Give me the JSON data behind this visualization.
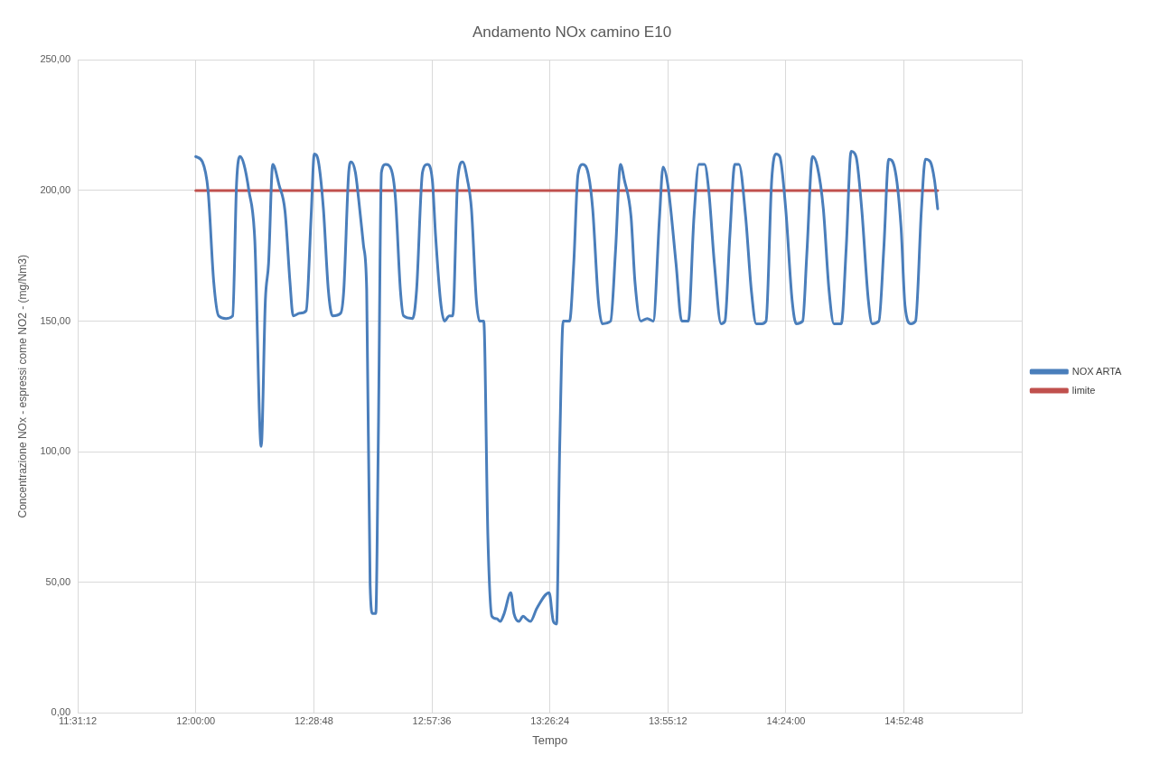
{
  "chart_data": {
    "type": "line",
    "title": "Andamento NOx camino E10",
    "xlabel": "Tempo",
    "ylabel": "Concentrazione NOx - espressi come NO2 - (mg/Nm3)",
    "xlim": [
      11.52,
      15.36
    ],
    "xticks": [
      {
        "value": 11.52,
        "label": "11:31:12"
      },
      {
        "value": 12,
        "label": "12:00:00"
      },
      {
        "value": 12.48,
        "label": "12:28:48"
      },
      {
        "value": 12.96,
        "label": "12:57:36"
      },
      {
        "value": 13.44,
        "label": "13:26:24"
      },
      {
        "value": 13.92,
        "label": "13:55:12"
      },
      {
        "value": 14.4,
        "label": "14:24:00"
      },
      {
        "value": 14.88,
        "label": "14:52:48"
      },
      {
        "value": 15.36,
        "label": null
      }
    ],
    "ylim": [
      0,
      250
    ],
    "yticks": [
      {
        "value": 0,
        "label": "0,00"
      },
      {
        "value": 50,
        "label": "50,00"
      },
      {
        "value": 100,
        "label": "100,00"
      },
      {
        "value": 150,
        "label": "150,00"
      },
      {
        "value": 200,
        "label": "200,00"
      },
      {
        "value": 250,
        "label": "250,00"
      }
    ],
    "grid": true,
    "legend": "right",
    "marker": "none",
    "line_style": "solid",
    "series": [
      {
        "name": "NOX ARTA",
        "color": "#4a7ebb",
        "x": [
          12.0,
          12.027,
          12.05,
          12.073,
          12.093,
          12.123,
          12.15,
          12.166,
          12.18,
          12.196,
          12.216,
          12.24,
          12.266,
          12.283,
          12.296,
          12.313,
          12.339,
          12.363,
          12.383,
          12.396,
          12.423,
          12.449,
          12.469,
          12.482,
          12.499,
          12.519,
          12.539,
          12.556,
          12.589,
          12.602,
          12.622,
          12.632,
          12.649,
          12.662,
          12.682,
          12.695,
          12.709,
          12.719,
          12.732,
          12.742,
          12.755,
          12.772,
          12.795,
          12.812,
          12.832,
          12.845,
          12.882,
          12.898,
          12.922,
          12.942,
          12.962,
          12.975,
          12.995,
          13.011,
          13.031,
          13.045,
          13.065,
          13.085,
          13.105,
          13.121,
          13.141,
          13.154,
          13.171,
          13.188,
          13.204,
          13.224,
          13.238,
          13.254,
          13.281,
          13.294,
          13.314,
          13.331,
          13.344,
          13.361,
          13.387,
          13.437,
          13.454,
          13.467,
          13.48,
          13.494,
          13.52,
          13.537,
          13.554,
          13.574,
          13.597,
          13.614,
          13.637,
          13.653,
          13.687,
          13.707,
          13.727,
          13.743,
          13.77,
          13.786,
          13.81,
          13.836,
          13.86,
          13.886,
          13.9,
          13.92,
          13.953,
          13.976,
          14.003,
          14.026,
          14.046,
          14.069,
          14.086,
          14.109,
          14.136,
          14.152,
          14.172,
          14.192,
          14.209,
          14.236,
          14.259,
          14.279,
          14.302,
          14.319,
          14.342,
          14.359,
          14.375,
          14.399,
          14.425,
          14.442,
          14.468,
          14.485,
          14.508,
          14.528,
          14.552,
          14.575,
          14.595,
          14.625,
          14.645,
          14.665,
          14.685,
          14.708,
          14.735,
          14.751,
          14.778,
          14.798,
          14.818,
          14.841,
          14.868,
          14.884,
          14.908,
          14.927,
          14.951,
          14.967,
          14.987,
          15.004,
          15.017
        ],
        "values": [
          213,
          211,
          200,
          165,
          152,
          151,
          152,
          203,
          213,
          210,
          200,
          181,
          102,
          158,
          172,
          210,
          202,
          192,
          165,
          152,
          153,
          154,
          190,
          214,
          211,
          193,
          162,
          152,
          153,
          162,
          207,
          211,
          207,
          197,
          179,
          162,
          49,
          38,
          38,
          102,
          207,
          210,
          208,
          197,
          162,
          152,
          151,
          162,
          207,
          210,
          204,
          183,
          158,
          150,
          152,
          152,
          204,
          211,
          204,
          193,
          158,
          150,
          150,
          67,
          37,
          36,
          35,
          38,
          46,
          38,
          35,
          37,
          36,
          35,
          40,
          46,
          35,
          34,
          102,
          150,
          150,
          172,
          206,
          210,
          206,
          193,
          158,
          149,
          150,
          177,
          210,
          204,
          190,
          165,
          150,
          151,
          150,
          190,
          209,
          202,
          172,
          150,
          150,
          190,
          210,
          210,
          200,
          172,
          149,
          150,
          183,
          210,
          210,
          190,
          162,
          149,
          149,
          150,
          204,
          214,
          213,
          193,
          158,
          149,
          150,
          176,
          213,
          209,
          193,
          162,
          149,
          149,
          178,
          215,
          213,
          193,
          158,
          149,
          150,
          178,
          212,
          209,
          186,
          156,
          149,
          150,
          193,
          212,
          211,
          204,
          193
        ]
      },
      {
        "name": "limite",
        "color": "#c0504d",
        "x": [
          12.0,
          15.017
        ],
        "values": [
          200,
          200
        ]
      }
    ]
  }
}
